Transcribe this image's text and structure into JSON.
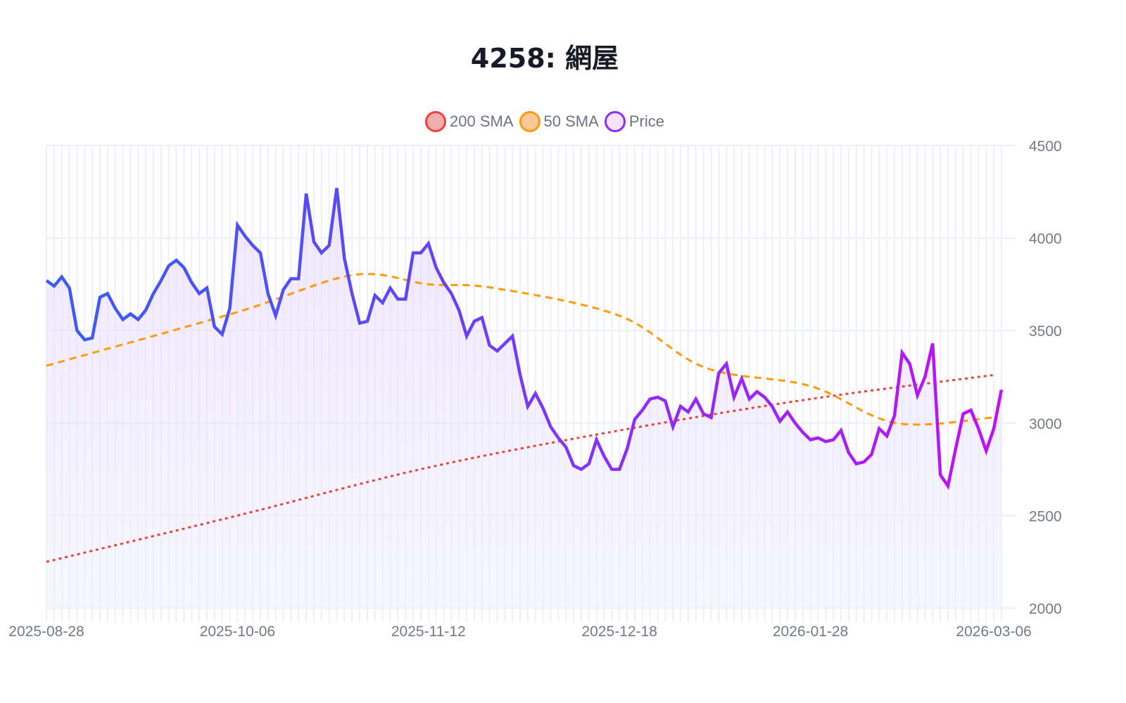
{
  "title": "4258: 網屋",
  "legend": [
    {
      "label": "200 SMA",
      "stroke": "#f0423a",
      "fill": "#f0aeb0"
    },
    {
      "label": "50 SMA",
      "stroke": "#ff9a0a",
      "fill": "#f8c896"
    },
    {
      "label": "Price",
      "stroke": "#8f2cf7",
      "fill": "#f3e3fd"
    }
  ],
  "chart_data": {
    "type": "line",
    "title": "4258: 網屋",
    "xlabel": "",
    "ylabel": "",
    "ylim": [
      2000,
      4500
    ],
    "y_ticks": [
      2000,
      2500,
      3000,
      3500,
      4000,
      4500
    ],
    "y_axis_position": "right",
    "x_tick_labels": [
      "2025-08-28",
      "2025-10-06",
      "2025-11-12",
      "2025-12-18",
      "2026-01-28",
      "2026-03-06"
    ],
    "x_tick_indices": [
      0,
      25,
      50,
      75,
      100,
      124
    ],
    "grid": true,
    "legend_position": "top",
    "series": [
      {
        "name": "Price",
        "style": "solid, gradient blue→purple→magenta, light purple area fill",
        "values": [
          3770,
          3740,
          3790,
          3730,
          3500,
          3450,
          3460,
          3680,
          3700,
          3620,
          3560,
          3590,
          3560,
          3610,
          3700,
          3770,
          3850,
          3880,
          3840,
          3760,
          3700,
          3730,
          3520,
          3480,
          3620,
          4070,
          4010,
          3960,
          3920,
          3700,
          3580,
          3720,
          3780,
          3780,
          4240,
          3980,
          3920,
          3960,
          4270,
          3890,
          3700,
          3540,
          3550,
          3690,
          3650,
          3730,
          3670,
          3670,
          3920,
          3920,
          3970,
          3840,
          3760,
          3700,
          3610,
          3470,
          3550,
          3570,
          3420,
          3390,
          3430,
          3470,
          3260,
          3090,
          3160,
          3080,
          2980,
          2920,
          2870,
          2770,
          2750,
          2780,
          2910,
          2820,
          2750,
          2750,
          2860,
          3020,
          3070,
          3130,
          3140,
          3120,
          2980,
          3090,
          3060,
          3130,
          3050,
          3030,
          3270,
          3320,
          3140,
          3240,
          3130,
          3170,
          3140,
          3090,
          3010,
          3060,
          3000,
          2950,
          2910,
          2920,
          2900,
          2910,
          2960,
          2840,
          2780,
          2790,
          2830,
          2970,
          2930,
          3040,
          3380,
          3320,
          3150,
          3250,
          3430,
          2720,
          2660,
          2860,
          3050,
          3070,
          2970,
          2850,
          2970,
          3180
        ]
      },
      {
        "name": "50 SMA",
        "style": "dashed orange",
        "values_sampled": {
          "2025-08-28": 3310,
          "2025-10-06": 3600,
          "2025-10-28": 3800,
          "2025-11-12": 3750,
          "2025-11-25": 3730,
          "2025-12-18": 3580,
          "2026-01-06": 3300,
          "2026-01-28": 3200,
          "2026-02-13": 3000,
          "2026-03-06": 3030
        }
      },
      {
        "name": "200 SMA",
        "style": "dotted red",
        "values_sampled": {
          "2025-08-28": 2250,
          "2025-10-06": 2500,
          "2025-11-12": 2760,
          "2025-12-18": 2960,
          "2026-01-28": 3130,
          "2026-03-06": 3260
        }
      }
    ]
  },
  "axis": {
    "y_labels": [
      "4500",
      "4000",
      "3500",
      "3000",
      "2500",
      "2000"
    ],
    "x_labels": [
      "2025-08-28",
      "2025-10-06",
      "2025-11-12",
      "2025-12-18",
      "2026-01-28",
      "2026-03-06"
    ]
  }
}
